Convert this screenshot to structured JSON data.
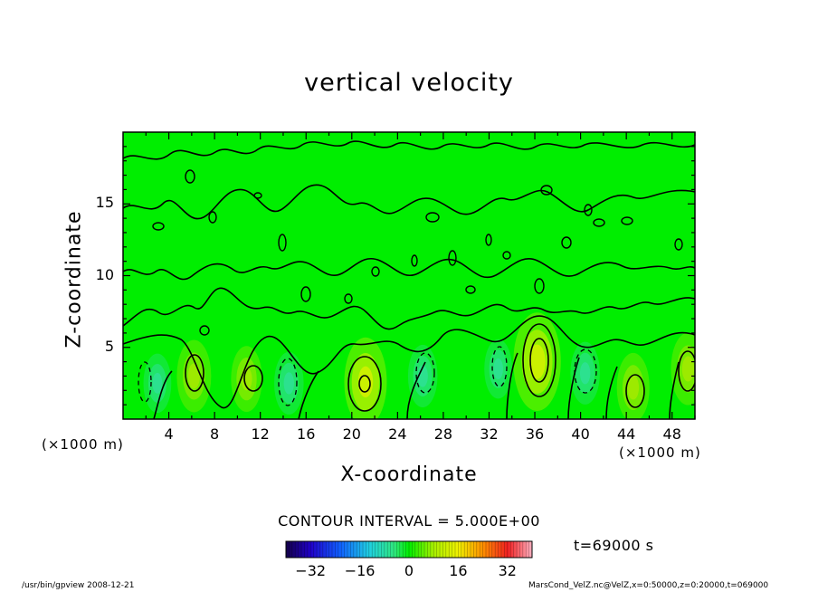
{
  "chart_data": {
    "type": "heatmap",
    "title": "vertical velocity",
    "xlabel": "X-coordinate",
    "ylabel": "Z-coordinate",
    "x_unit": "(×1000 m)",
    "x_ticks": [
      4,
      8,
      12,
      16,
      20,
      24,
      28,
      32,
      36,
      40,
      44,
      48
    ],
    "y_ticks": [
      5,
      10,
      15
    ],
    "xlim": [
      0,
      50
    ],
    "ylim": [
      0,
      20
    ],
    "contour_interval_label": "CONTOUR INTERVAL = 5.000E+00",
    "colorbar": {
      "ticks": [
        -32,
        -16,
        0,
        16,
        32
      ],
      "range": [
        -40,
        40
      ]
    },
    "time_label": "t=69000 s",
    "updraft_cores": [
      {
        "x": 6.2,
        "z": 3.0,
        "w": 10
      },
      {
        "x": 10.8,
        "z": 2.8,
        "w": 8
      },
      {
        "x": 21.2,
        "z": 2.6,
        "w": 15
      },
      {
        "x": 36.2,
        "z": 4.0,
        "w": 18
      },
      {
        "x": 44.6,
        "z": 2.2,
        "w": 9
      },
      {
        "x": 49.4,
        "z": 3.5,
        "w": 10
      }
    ],
    "downdraft_cores": [
      {
        "x": 3.0,
        "z": 2.5,
        "w": -6
      },
      {
        "x": 14.5,
        "z": 2.5,
        "w": -7
      },
      {
        "x": 26.2,
        "z": 3.0,
        "w": -7
      },
      {
        "x": 32.8,
        "z": 3.5,
        "w": -6
      },
      {
        "x": 40.4,
        "z": 3.2,
        "w": -7
      }
    ]
  },
  "footer": {
    "left": "/usr/bin/gpview   2008-12-21",
    "right": "MarsCond_VelZ.nc@VelZ,x=0:50000,z=0:20000,t=069000"
  },
  "colors": {
    "background_green": "#00ee00",
    "frame": "#000000"
  }
}
